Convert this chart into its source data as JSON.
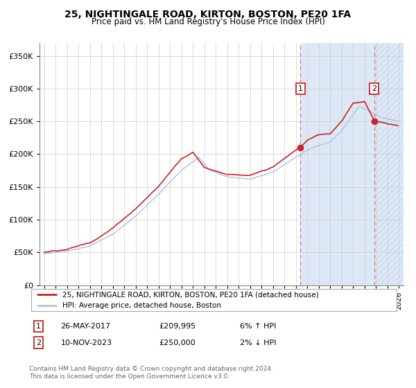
{
  "title1": "25, NIGHTINGALE ROAD, KIRTON, BOSTON, PE20 1FA",
  "title2": "Price paid vs. HM Land Registry's House Price Index (HPI)",
  "legend_line1": "25, NIGHTINGALE ROAD, KIRTON, BOSTON, PE20 1FA (detached house)",
  "legend_line2": "HPI: Average price, detached house, Boston",
  "annotation1_date": "26-MAY-2017",
  "annotation1_price": "£209,995",
  "annotation1_hpi": "6% ↑ HPI",
  "annotation2_date": "10-NOV-2023",
  "annotation2_price": "£250,000",
  "annotation2_hpi": "2% ↓ HPI",
  "footnote1": "Contains HM Land Registry data © Crown copyright and database right 2024.",
  "footnote2": "This data is licensed under the Open Government Licence v3.0.",
  "hpi_color": "#a8c4e0",
  "price_color": "#cc2222",
  "dashed_color": "#e08080",
  "marker1_x": 2017.4,
  "marker2_x": 2023.83,
  "marker1_y": 209995,
  "marker2_y": 250000,
  "shade_color": "#dce8f5",
  "hatch_color": "#c8d8ea",
  "ylim_min": 0,
  "ylim_max": 370000,
  "xlim_min": 1994.6,
  "xlim_max": 2026.4,
  "yticks": [
    0,
    50000,
    100000,
    150000,
    200000,
    250000,
    300000,
    350000
  ],
  "xtick_start": 1995,
  "xtick_end": 2026
}
